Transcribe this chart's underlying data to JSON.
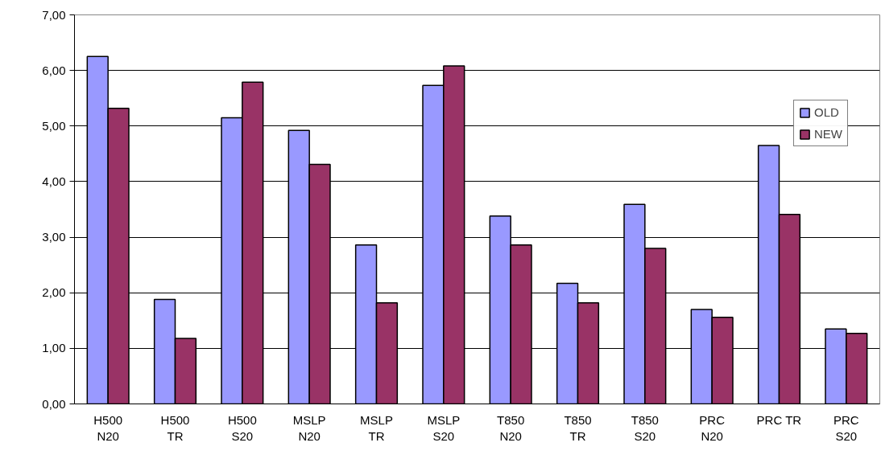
{
  "chart_data": {
    "type": "bar",
    "categories": [
      "H500 N20",
      "H500 TR",
      "H500 S20",
      "MSLP N20",
      "MSLP TR",
      "MSLP S20",
      "T850 N20",
      "T850 TR",
      "T850 S20",
      "PRC N20",
      "PRC TR",
      "PRC S20"
    ],
    "series": [
      {
        "name": "OLD",
        "color": "#9999ff",
        "values": [
          6.25,
          1.88,
          5.15,
          4.92,
          2.86,
          5.73,
          3.38,
          2.17,
          3.59,
          1.7,
          4.65,
          1.35
        ]
      },
      {
        "name": "NEW",
        "color": "#993366",
        "values": [
          5.32,
          1.18,
          5.79,
          4.31,
          1.82,
          6.08,
          2.86,
          1.82,
          2.8,
          1.56,
          3.41,
          1.27
        ]
      }
    ],
    "ylim": [
      0,
      7
    ],
    "yticks": [
      {
        "value": 0,
        "label": "0,00"
      },
      {
        "value": 1,
        "label": "1,00"
      },
      {
        "value": 2,
        "label": "2,00"
      },
      {
        "value": 3,
        "label": "3,00"
      },
      {
        "value": 4,
        "label": "4,00"
      },
      {
        "value": 5,
        "label": "5,00"
      },
      {
        "value": 6,
        "label": "6,00"
      },
      {
        "value": 7,
        "label": "7,00"
      }
    ],
    "grid": "y",
    "legend": "right"
  }
}
